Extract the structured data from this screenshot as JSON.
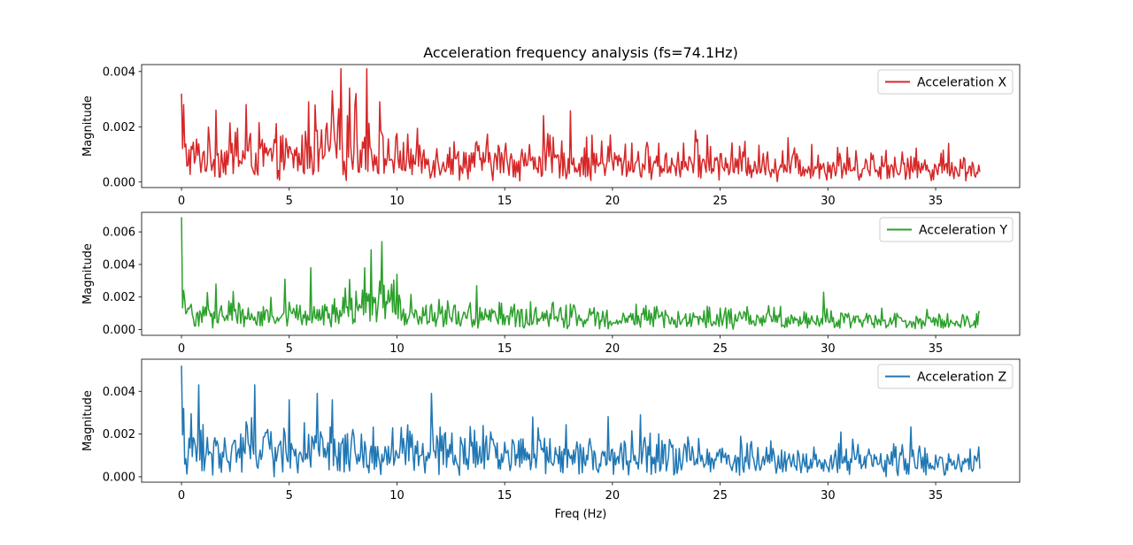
{
  "figure": {
    "title": "Acceleration frequency analysis (fs=74.1Hz)",
    "xlabel": "Freq (Hz)"
  },
  "chart_data": [
    {
      "type": "line",
      "ylabel": "Magnitude",
      "xlim": [
        -1.85,
        38.9
      ],
      "ylim": [
        -0.0002,
        0.00425
      ],
      "xticks": [
        0,
        5,
        10,
        15,
        20,
        25,
        30,
        35
      ],
      "xtick_labels": [
        "0",
        "5",
        "10",
        "15",
        "20",
        "25",
        "30",
        "35"
      ],
      "yticks": [
        0,
        0.002,
        0.004
      ],
      "ytick_labels": [
        "0.000",
        "0.002",
        "0.004"
      ],
      "grid": false,
      "legend_placement": "upper right",
      "series": [
        {
          "name": "Acceleration X",
          "color": "#d62728",
          "x_start": 0,
          "x_end": 37.05,
          "x_step": 0.05,
          "peaks": [
            {
              "x": 0.0,
              "y": 0.0032
            },
            {
              "x": 0.1,
              "y": 0.0028
            },
            {
              "x": 1.6,
              "y": 0.0026
            },
            {
              "x": 3.0,
              "y": 0.0028
            },
            {
              "x": 5.9,
              "y": 0.0029
            },
            {
              "x": 7.0,
              "y": 0.0033
            },
            {
              "x": 7.4,
              "y": 0.0041
            },
            {
              "x": 7.8,
              "y": 0.0034
            },
            {
              "x": 8.1,
              "y": 0.0032
            },
            {
              "x": 8.6,
              "y": 0.0041
            },
            {
              "x": 9.2,
              "y": 0.0029
            },
            {
              "x": 16.8,
              "y": 0.0024
            },
            {
              "x": 19.9,
              "y": 0.0017
            },
            {
              "x": 24.4,
              "y": 0.0017
            },
            {
              "x": 35.6,
              "y": 0.0014
            }
          ]
        }
      ]
    },
    {
      "type": "line",
      "ylabel": "Magnitude",
      "xlim": [
        -1.85,
        38.9
      ],
      "ylim": [
        -0.00035,
        0.0072
      ],
      "xticks": [
        0,
        5,
        10,
        15,
        20,
        25,
        30,
        35
      ],
      "xtick_labels": [
        "0",
        "5",
        "10",
        "15",
        "20",
        "25",
        "30",
        "35"
      ],
      "yticks": [
        0,
        0.002,
        0.004,
        0.006
      ],
      "ytick_labels": [
        "0.000",
        "0.002",
        "0.004",
        "0.006"
      ],
      "grid": false,
      "legend_placement": "upper right",
      "series": [
        {
          "name": "Acceleration Y",
          "color": "#2ca02c",
          "x_start": 0,
          "x_end": 37.05,
          "x_step": 0.05,
          "peaks": [
            {
              "x": 0.0,
              "y": 0.0069
            },
            {
              "x": 0.1,
              "y": 0.0024
            },
            {
              "x": 1.6,
              "y": 0.0028
            },
            {
              "x": 4.8,
              "y": 0.0031
            },
            {
              "x": 6.0,
              "y": 0.0038
            },
            {
              "x": 8.5,
              "y": 0.0038
            },
            {
              "x": 8.8,
              "y": 0.0049
            },
            {
              "x": 9.3,
              "y": 0.0054
            },
            {
              "x": 10.0,
              "y": 0.0034
            },
            {
              "x": 13.7,
              "y": 0.0027
            },
            {
              "x": 29.8,
              "y": 0.0023
            },
            {
              "x": 37.0,
              "y": 0.0011
            }
          ]
        }
      ]
    },
    {
      "type": "line",
      "ylabel": "Magnitude",
      "xlim": [
        -1.85,
        38.9
      ],
      "ylim": [
        -0.00025,
        0.0055
      ],
      "xticks": [
        0,
        5,
        10,
        15,
        20,
        25,
        30,
        35
      ],
      "xtick_labels": [
        "0",
        "5",
        "10",
        "15",
        "20",
        "25",
        "30",
        "35"
      ],
      "yticks": [
        0,
        0.002,
        0.004
      ],
      "ytick_labels": [
        "0.000",
        "0.002",
        "0.004"
      ],
      "grid": false,
      "legend_placement": "upper right",
      "series": [
        {
          "name": "Acceleration Z",
          "color": "#1f77b4",
          "x_start": 0,
          "x_end": 37.05,
          "x_step": 0.05,
          "peaks": [
            {
              "x": 0.0,
              "y": 0.0052
            },
            {
              "x": 0.1,
              "y": 0.0032
            },
            {
              "x": 0.8,
              "y": 0.0043
            },
            {
              "x": 3.4,
              "y": 0.0043
            },
            {
              "x": 5.0,
              "y": 0.0036
            },
            {
              "x": 6.3,
              "y": 0.0039
            },
            {
              "x": 7.0,
              "y": 0.0036
            },
            {
              "x": 11.6,
              "y": 0.0039
            },
            {
              "x": 16.3,
              "y": 0.0028
            },
            {
              "x": 21.3,
              "y": 0.0029
            },
            {
              "x": 30.6,
              "y": 0.0021
            },
            {
              "x": 37.0,
              "y": 0.0014
            }
          ]
        }
      ]
    }
  ]
}
